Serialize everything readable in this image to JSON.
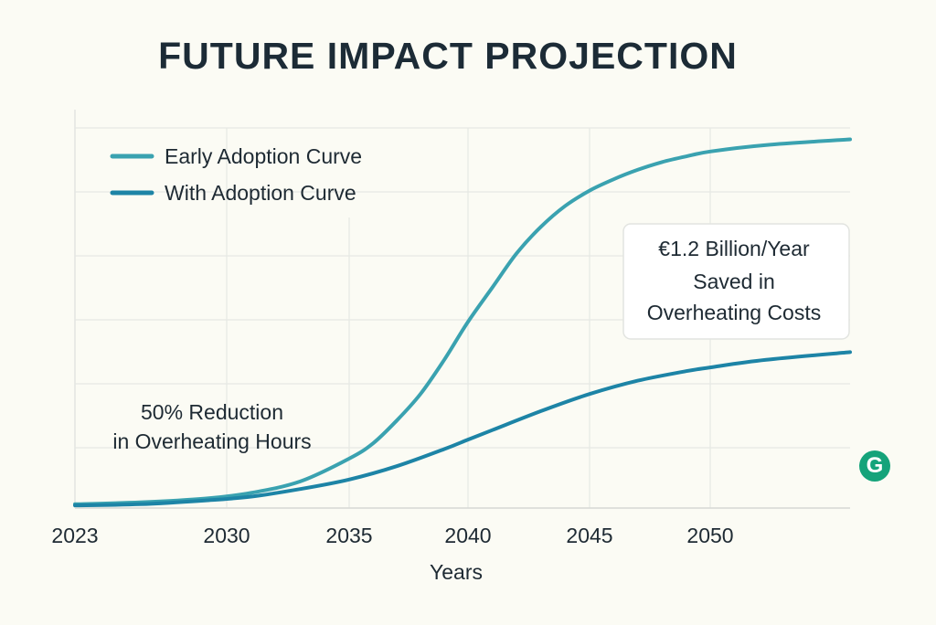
{
  "page": {
    "badge_letter": "G"
  },
  "chart_data": {
    "type": "line",
    "title": "FUTURE IMPACT PROJECTION",
    "xlabel": "Years",
    "ylabel": "",
    "xlim": [
      2023,
      2055
    ],
    "ylim": [
      0,
      100
    ],
    "grid": true,
    "legend_position": "top-left",
    "x_tick_labels": [
      "2023",
      "2030",
      "2035",
      "2040",
      "2045",
      "2050"
    ],
    "x_ticks": [
      2023,
      2030,
      2035,
      2040,
      2045,
      2050
    ],
    "series": [
      {
        "name": "Early Adoption Curve",
        "color": "#3aa2b0",
        "x": [
          2023,
          2026,
          2029,
          2031,
          2033,
          2035,
          2036,
          2037,
          2038,
          2039,
          2040,
          2041,
          2042,
          2043,
          2044,
          2045,
          2046,
          2047,
          2048,
          2049,
          2050,
          2052,
          2055
        ],
        "y": [
          1,
          1.5,
          2.5,
          4,
          7,
          13,
          17,
          23,
          30,
          39,
          49,
          58,
          67,
          74,
          79.5,
          83.5,
          86.5,
          89,
          91,
          92.5,
          93.8,
          95.5,
          97
        ]
      },
      {
        "name": "With Adoption Curve",
        "color": "#1d84a6",
        "x": [
          2023,
          2026,
          2029,
          2031,
          2033,
          2035,
          2037,
          2039,
          2040,
          2041,
          2043,
          2045,
          2047,
          2049,
          2050,
          2052,
          2055
        ],
        "y": [
          0.7,
          1,
          2,
          3,
          5,
          7.5,
          11,
          15.5,
          18,
          20.5,
          25.5,
          30,
          33.5,
          36,
          37,
          39,
          41
        ]
      }
    ],
    "annotations": [
      {
        "id": "reduction",
        "lines": [
          "50% Reduction",
          "in Overheating Hours"
        ]
      },
      {
        "id": "savings",
        "lines": [
          "€1.2 Billion/Year",
          "Saved in",
          "Overheating Costs"
        ]
      }
    ]
  }
}
